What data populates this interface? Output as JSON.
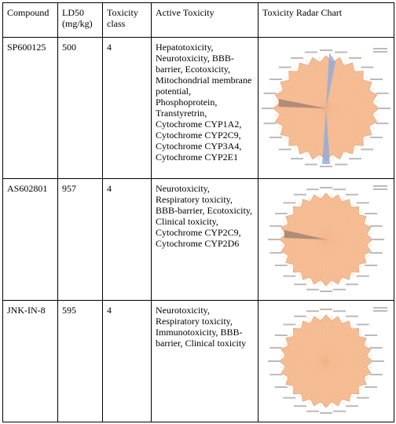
{
  "table": {
    "headers": [
      "Compound",
      "LD50 (mg/kg)",
      "Toxicity class",
      "Active Toxicity",
      "Toxicity Radar Chart"
    ],
    "rows": [
      [
        "SP600125",
        "500",
        "4",
        "Hepatotoxicity, Neurotoxicity, BBB-barrier, Ecotoxicity, Mitochondrial membrane potential, Phosphoprotein, Transtyretrin, Cytochrome CYP1A2, Cytochrome CYP2C9, Cytochrome CYP3A4, Cytochrome CYP2E1"
      ],
      [
        "AS602801",
        "957",
        "4",
        "Neurotoxicity, Respiratory toxicity, BBB-barrier, Ecotoxicity, Clinical toxicity, Cytochrome CYP2C9, Cytochrome CYP2D6"
      ],
      [
        "JNK-IN-8",
        "595",
        "4",
        "Neurotoxicity, Respiratory toxicity, Immunotoxicity, BBB-barrier, Clinical toxicity"
      ]
    ]
  }
}
